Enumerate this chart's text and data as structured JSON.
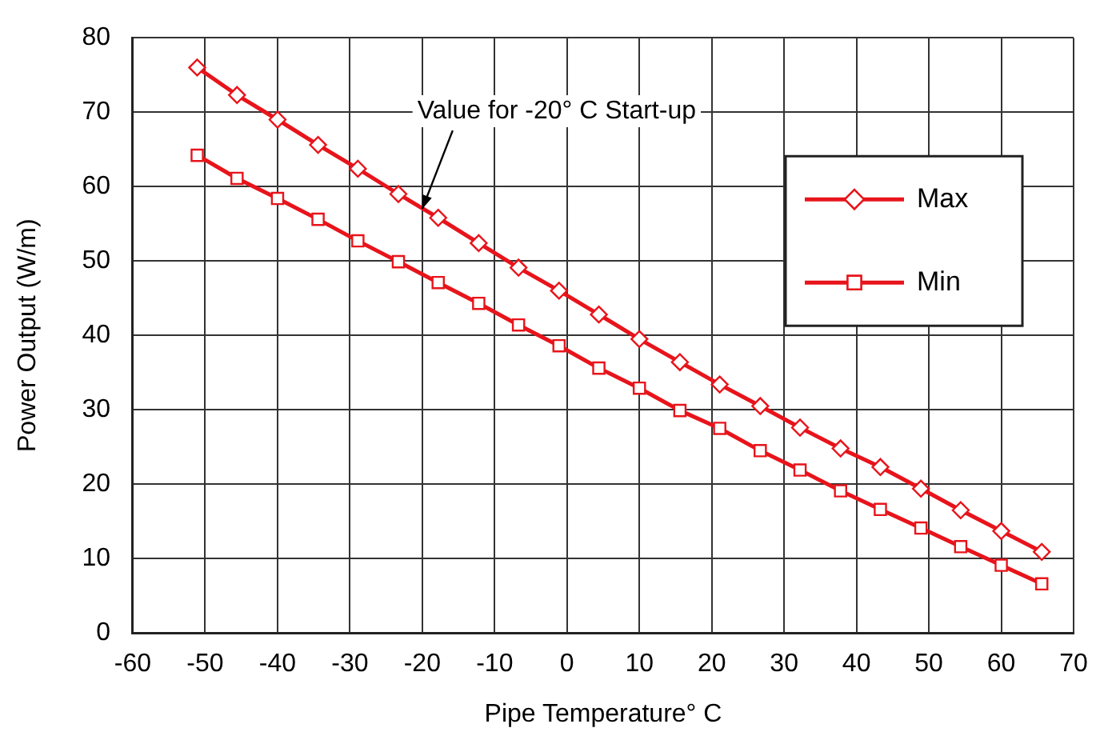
{
  "chart_data": {
    "type": "line",
    "xlabel": "Pipe Temperature° C",
    "ylabel": "Power Output (W/m)",
    "x": [
      -51.1,
      -45.6,
      -40,
      -34.4,
      -28.9,
      -23.3,
      -17.8,
      -12.2,
      -6.7,
      -1.1,
      4.4,
      10,
      15.6,
      21.1,
      26.7,
      32.2,
      37.8,
      43.3,
      48.9,
      54.4,
      60,
      65.6
    ],
    "series": [
      {
        "name": "Max",
        "color": "#e8141b",
        "marker": "diamond",
        "values": [
          76.0,
          72.3,
          69.0,
          65.6,
          62.4,
          59.0,
          55.8,
          52.4,
          49.1,
          46.0,
          42.8,
          39.5,
          36.4,
          33.4,
          30.5,
          27.6,
          24.8,
          22.3,
          19.4,
          16.5,
          13.7,
          10.9
        ]
      },
      {
        "name": "Min",
        "color": "#e8141b",
        "marker": "square",
        "values": [
          64.2,
          61.1,
          58.4,
          55.6,
          52.7,
          49.9,
          47.1,
          44.3,
          41.4,
          38.6,
          35.6,
          32.9,
          29.9,
          27.5,
          24.5,
          21.9,
          19.1,
          16.6,
          14.1,
          11.6,
          9.1,
          6.6
        ]
      }
    ],
    "xlim": [
      -60,
      70
    ],
    "xticks": [
      -60,
      -50,
      -40,
      -30,
      -20,
      -10,
      0,
      10,
      20,
      30,
      40,
      50,
      60,
      70
    ],
    "ylim": [
      0,
      80
    ],
    "yticks": [
      0,
      10,
      20,
      30,
      40,
      50,
      60,
      70,
      80
    ],
    "grid": true,
    "legend": "right",
    "line_style": "solid",
    "annotations": [
      {
        "text": "Value for -20° C Start-up",
        "x": -20,
        "y": 57
      }
    ]
  }
}
